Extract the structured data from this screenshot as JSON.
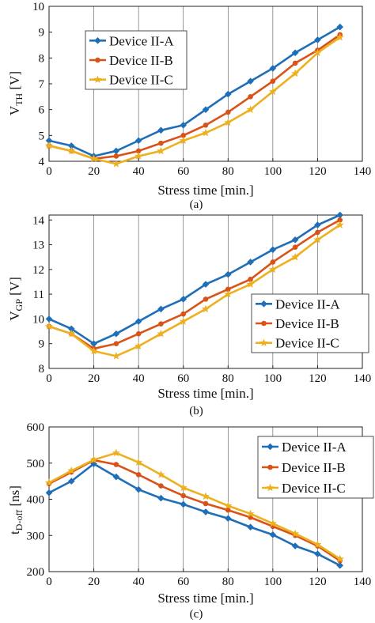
{
  "figure_labels": [
    "(a)",
    "(b)",
    "(c)"
  ],
  "chart_data": [
    {
      "type": "line",
      "xlabel": "Stress time [min.]",
      "ylabel_main": "V",
      "ylabel_sub": "TH",
      "ylabel_unit": "[V]",
      "xlim": [
        0,
        140
      ],
      "ylim": [
        4,
        10
      ],
      "xticks": [
        0,
        20,
        40,
        60,
        80,
        100,
        120,
        140
      ],
      "yticks": [
        4,
        5,
        6,
        7,
        8,
        9,
        10
      ],
      "grid": "major, x only",
      "legend_position": "top-left",
      "x": [
        0,
        10,
        20,
        30,
        40,
        50,
        60,
        70,
        80,
        90,
        100,
        110,
        120,
        130
      ],
      "series": [
        {
          "name": "Device II-A",
          "color": "#1f6fb8",
          "marker": "diamond",
          "values": [
            4.8,
            4.6,
            4.2,
            4.4,
            4.8,
            5.2,
            5.4,
            6.0,
            6.6,
            7.1,
            7.6,
            8.2,
            8.7,
            9.2
          ]
        },
        {
          "name": "Device II-B",
          "color": "#d95319",
          "marker": "circle",
          "values": [
            4.6,
            4.4,
            4.1,
            4.2,
            4.4,
            4.7,
            5.0,
            5.4,
            5.9,
            6.5,
            7.1,
            7.8,
            8.3,
            8.9
          ]
        },
        {
          "name": "Device II-C",
          "color": "#edb120",
          "marker": "star",
          "values": [
            4.6,
            4.4,
            4.1,
            3.9,
            4.2,
            4.4,
            4.8,
            5.1,
            5.5,
            6.0,
            6.7,
            7.4,
            8.2,
            8.8
          ]
        }
      ]
    },
    {
      "type": "line",
      "xlabel": "Stress time [min.]",
      "ylabel_main": "V",
      "ylabel_sub": "GP",
      "ylabel_unit": "[V]",
      "xlim": [
        0,
        140
      ],
      "ylim": [
        8,
        14.2
      ],
      "xticks": [
        0,
        20,
        40,
        60,
        80,
        100,
        120,
        140
      ],
      "yticks": [
        8,
        9,
        10,
        11,
        12,
        13,
        14
      ],
      "grid": "major, x only",
      "legend_position": "bottom-right",
      "x": [
        0,
        10,
        20,
        30,
        40,
        50,
        60,
        70,
        80,
        90,
        100,
        110,
        120,
        130
      ],
      "series": [
        {
          "name": "Device II-A",
          "color": "#1f6fb8",
          "marker": "diamond",
          "values": [
            10.0,
            9.6,
            9.0,
            9.4,
            9.9,
            10.4,
            10.8,
            11.4,
            11.8,
            12.3,
            12.8,
            13.2,
            13.8,
            14.2
          ]
        },
        {
          "name": "Device II-B",
          "color": "#d95319",
          "marker": "circle",
          "values": [
            9.7,
            9.4,
            8.8,
            9.0,
            9.4,
            9.8,
            10.2,
            10.8,
            11.2,
            11.6,
            12.3,
            12.9,
            13.5,
            14.0
          ]
        },
        {
          "name": "Device II-C",
          "color": "#edb120",
          "marker": "star",
          "values": [
            9.7,
            9.4,
            8.7,
            8.5,
            8.9,
            9.4,
            9.9,
            10.4,
            11.0,
            11.4,
            12.0,
            12.5,
            13.2,
            13.8
          ]
        }
      ]
    },
    {
      "type": "line",
      "xlabel": "Stress time [min.]",
      "ylabel_main": "t",
      "ylabel_sub": "D-off",
      "ylabel_unit": "[ns]",
      "xlim": [
        0,
        140
      ],
      "ylim": [
        200,
        600
      ],
      "xticks": [
        0,
        20,
        40,
        60,
        80,
        100,
        120,
        140
      ],
      "yticks": [
        200,
        300,
        400,
        500,
        600
      ],
      "grid": "major, x only",
      "legend_position": "top-right",
      "x": [
        0,
        10,
        20,
        30,
        40,
        50,
        60,
        70,
        80,
        90,
        100,
        110,
        120,
        130
      ],
      "series": [
        {
          "name": "Device II-A",
          "color": "#1f6fb8",
          "marker": "diamond",
          "values": [
            418,
            450,
            498,
            462,
            427,
            403,
            386,
            365,
            347,
            323,
            302,
            271,
            249,
            217
          ]
        },
        {
          "name": "Device II-B",
          "color": "#d95319",
          "marker": "circle",
          "values": [
            443,
            475,
            508,
            496,
            468,
            437,
            410,
            388,
            370,
            350,
            325,
            300,
            271,
            230
          ]
        },
        {
          "name": "Device II-C",
          "color": "#edb120",
          "marker": "star",
          "values": [
            446,
            479,
            509,
            528,
            502,
            468,
            432,
            408,
            382,
            360,
            333,
            305,
            275,
            235
          ]
        }
      ]
    }
  ]
}
